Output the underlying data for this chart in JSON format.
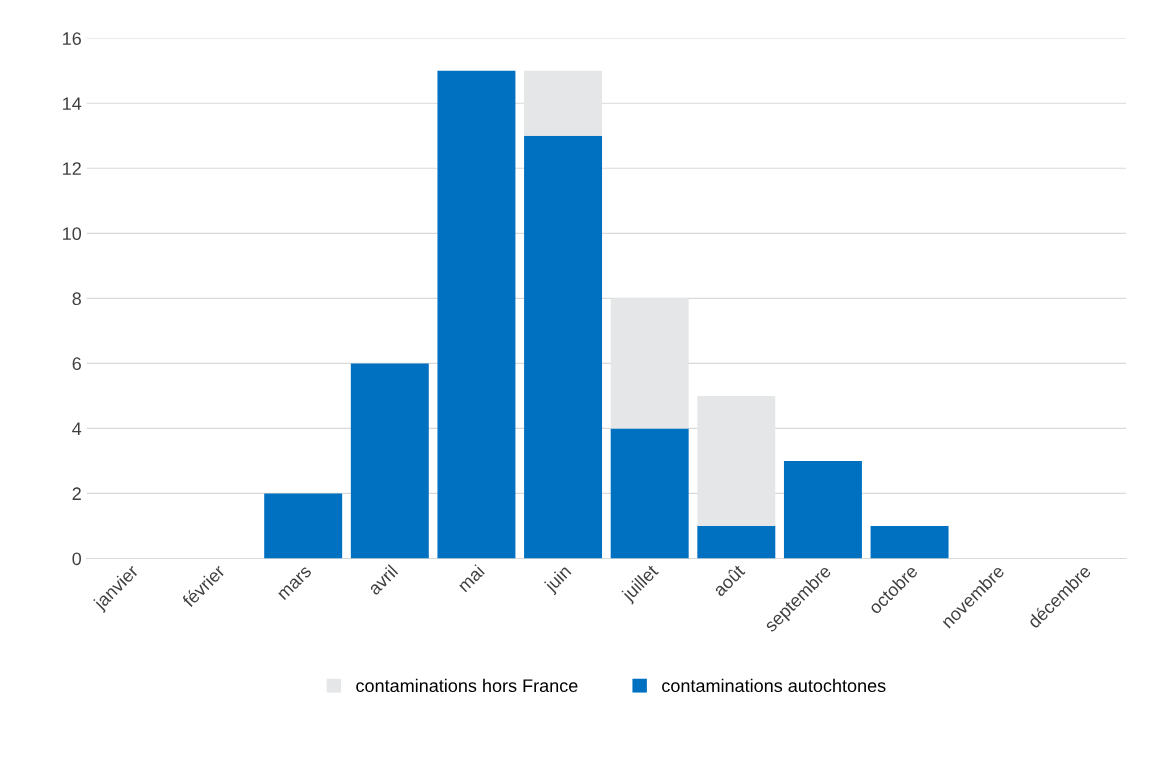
{
  "chart_data": {
    "type": "bar",
    "stacked": true,
    "categories": [
      "janvier",
      "février",
      "mars",
      "avril",
      "mai",
      "juin",
      "juillet",
      "août",
      "septembre",
      "octobre",
      "novembre",
      "décembre"
    ],
    "series": [
      {
        "name": "contaminations autochtones",
        "color": "#0070c0",
        "values": [
          0,
          0,
          2,
          6,
          15,
          13,
          4,
          1,
          3,
          1,
          0,
          0
        ]
      },
      {
        "name": "contaminations hors France",
        "color": "#e4e6e7",
        "values": [
          0,
          0,
          0,
          0,
          0,
          2,
          4,
          4,
          0,
          0,
          0,
          0
        ]
      }
    ],
    "ylim": [
      0,
      16
    ],
    "yticks": [
      0,
      2,
      4,
      6,
      8,
      10,
      12,
      14,
      16
    ],
    "grid": "y",
    "legend": "bottom"
  }
}
